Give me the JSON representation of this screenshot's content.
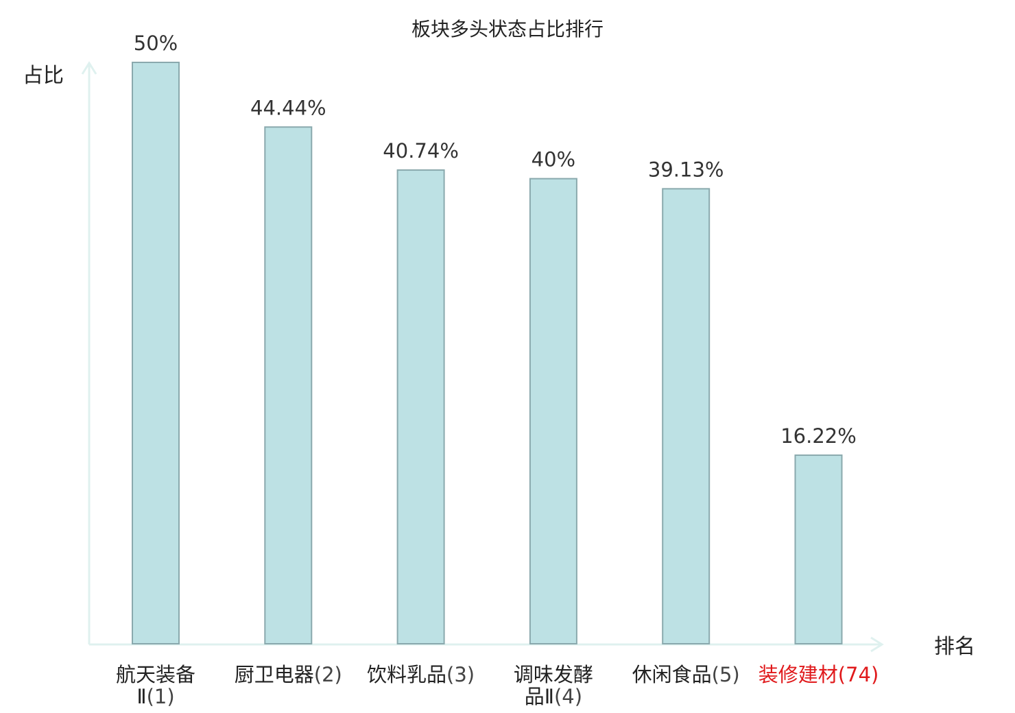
{
  "chart_data": {
    "type": "bar",
    "title": "板块多头状态占比排行",
    "ylabel": "占比",
    "xlabel": "排名",
    "ylim": [
      0,
      50
    ],
    "grid": false,
    "legend": "none",
    "categories": [
      {
        "name_lines": [
          "航天装备",
          "Ⅱ"
        ],
        "rank": "(1)",
        "highlight": false
      },
      {
        "name_lines": [
          "厨卫电器"
        ],
        "rank": "(2)",
        "highlight": false
      },
      {
        "name_lines": [
          "饮料乳品"
        ],
        "rank": "(3)",
        "highlight": false
      },
      {
        "name_lines": [
          "调味发酵",
          "品Ⅱ"
        ],
        "rank": "(4)",
        "highlight": false
      },
      {
        "name_lines": [
          "休闲食品"
        ],
        "rank": "(5)",
        "highlight": false
      },
      {
        "name_lines": [
          "装修建材"
        ],
        "rank": "(74)",
        "highlight": true
      }
    ],
    "values": [
      50,
      44.44,
      40.74,
      40,
      39.13,
      16.22
    ],
    "value_labels": [
      "50%",
      "44.44%",
      "40.74%",
      "40%",
      "39.13%",
      "16.22%"
    ]
  },
  "colors": {
    "bar_fill": "#bde1e4",
    "bar_stroke": "#8aa9ad",
    "axis": "#dff1ef",
    "text": "#222222",
    "rank_text": "#444444",
    "highlight": "#e0191b"
  }
}
